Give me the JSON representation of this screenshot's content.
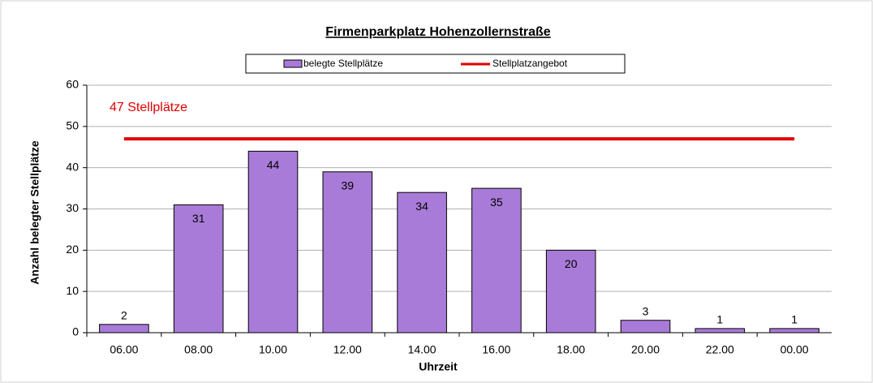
{
  "chart_data": {
    "type": "bar",
    "title": "Firmenparkplatz Hohenzollernstraße",
    "x_label": "Uhrzeit",
    "y_label": "Anzahl belegter Stellplätze",
    "annotation": "47 Stellplätze",
    "categories": [
      "06.00",
      "08.00",
      "10.00",
      "12.00",
      "14.00",
      "16.00",
      "18.00",
      "20.00",
      "22.00",
      "00.00"
    ],
    "series": [
      {
        "name": "belegte Stellplätze",
        "type": "bar",
        "color": "#a97bd8",
        "values": [
          2,
          31,
          44,
          39,
          34,
          35,
          20,
          3,
          1,
          1
        ]
      },
      {
        "name": "Stellplatzangebot",
        "type": "line",
        "color": "#e00000",
        "values": [
          47,
          47,
          47,
          47,
          47,
          47,
          47,
          47,
          47,
          47
        ]
      }
    ],
    "ylim": [
      0,
      60
    ],
    "yticks": [
      0,
      10,
      20,
      30,
      40,
      50,
      60
    ],
    "grid": true,
    "legend": "top"
  }
}
